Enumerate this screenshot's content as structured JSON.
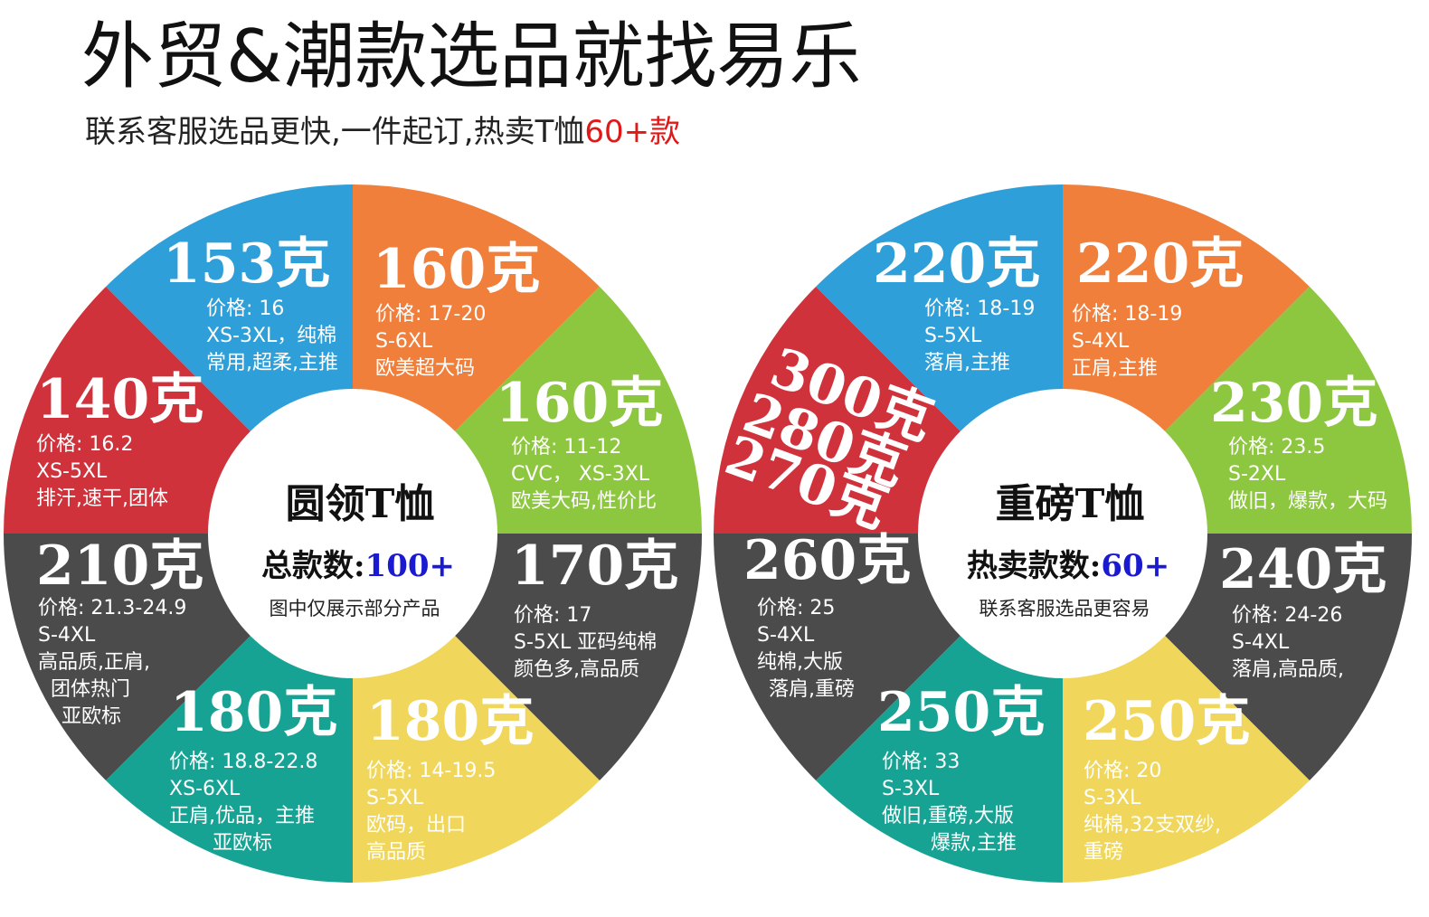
{
  "header": {
    "title": "外贸&潮款选品就找易乐",
    "subtitle": "联系客服选品更快,一件起订,热卖T恤",
    "subtitle_highlight": "60+款"
  },
  "wheels": [
    {
      "center_title": "圆领T恤",
      "count_label": "总款数:",
      "count_value": "100+",
      "note": "图中仅展示部分产品",
      "segments": [
        {
          "color": "#2e9fd8",
          "weights": [
            "153克"
          ],
          "lines": [
            "价格: 16",
            "XS-3XL，纯棉",
            "常用,超柔,主推"
          ]
        },
        {
          "color": "#f07f3c",
          "weights": [
            "160克"
          ],
          "lines": [
            "价格: 17-20",
            "S-6XL",
            "欧美超大码"
          ]
        },
        {
          "color": "#8dc63f",
          "weights": [
            "160克"
          ],
          "lines": [
            "价格: 11-12",
            "CVC，  XS-3XL",
            "欧美大码,性价比"
          ]
        },
        {
          "color": "#4b4b4b",
          "weights": [
            "170克"
          ],
          "lines": [
            "价格: 17",
            "S-5XL 亚码纯棉",
            "颜色多,高品质"
          ]
        },
        {
          "color": "#f0d65a",
          "weights": [
            "180克"
          ],
          "lines": [
            "价格: 14-19.5",
            "S-5XL",
            "欧码，出口",
            "高品质"
          ]
        },
        {
          "color": "#17a394",
          "weights": [
            "180克"
          ],
          "lines": [
            "价格: 18.8-22.8",
            "XS-6XL",
            "正肩,优品，主推",
            "亚欧标"
          ]
        },
        {
          "color": "#4b4b4b",
          "weights": [
            "210克"
          ],
          "lines": [
            "价格: 21.3-24.9",
            "S-4XL",
            "高品质,正肩,",
            "团体热门",
            "亚欧标"
          ]
        },
        {
          "color": "#d0323c",
          "weights": [
            "140克"
          ],
          "lines": [
            "价格: 16.2",
            "XS-5XL",
            "排汗,速干,团体"
          ]
        }
      ]
    },
    {
      "center_title": "重磅T恤",
      "count_label": "热卖款数:",
      "count_value": "60+",
      "note": "联系客服选品更容易",
      "segments": [
        {
          "color": "#2e9fd8",
          "weights": [
            "220克"
          ],
          "lines": [
            "价格: 18-19",
            "S-5XL",
            "落肩,主推"
          ]
        },
        {
          "color": "#f07f3c",
          "weights": [
            "220克"
          ],
          "lines": [
            "价格: 18-19",
            "S-4XL",
            "正肩,主推"
          ]
        },
        {
          "color": "#8dc63f",
          "weights": [
            "230克"
          ],
          "lines": [
            "价格: 23.5",
            "S-2XL",
            "做旧，爆款，大码"
          ]
        },
        {
          "color": "#4b4b4b",
          "weights": [
            "240克"
          ],
          "lines": [
            "价格: 24-26",
            "S-4XL",
            "落肩,高品质,"
          ]
        },
        {
          "color": "#f0d65a",
          "weights": [
            "250克"
          ],
          "lines": [
            "价格: 20",
            "S-3XL",
            "纯棉,32支双纱,",
            "重磅"
          ]
        },
        {
          "color": "#17a394",
          "weights": [
            "250克"
          ],
          "lines": [
            "价格: 33",
            "S-3XL",
            "做旧,重磅,大版",
            "爆款,主推"
          ]
        },
        {
          "color": "#4b4b4b",
          "weights": [
            "260克"
          ],
          "lines": [
            "价格: 25",
            "S-4XL",
            "纯棉,大版",
            "落肩,重磅"
          ]
        },
        {
          "color": "#d0323c",
          "weights": [
            "300克",
            "280克",
            "270克"
          ],
          "lines": []
        }
      ]
    }
  ]
}
